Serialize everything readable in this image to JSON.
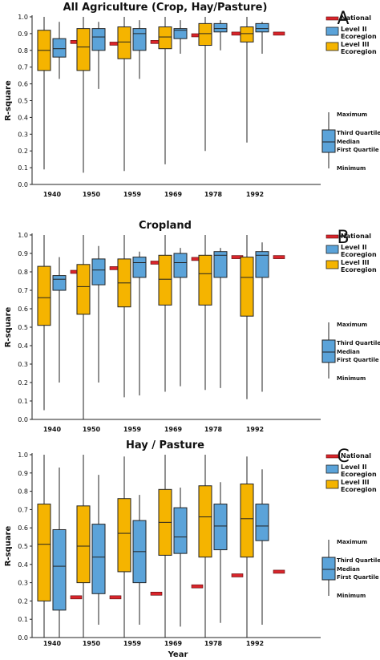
{
  "colors": {
    "national": "#d9252b",
    "level2": "#5ba3d9",
    "level3": "#f5b400",
    "stroke": "#222222"
  },
  "x_label": "Year",
  "legend": {
    "national": "National",
    "level2": [
      "Level II",
      "Ecoregion"
    ],
    "level3": [
      "Level III",
      "Ecoregion"
    ]
  },
  "key": {
    "maximum": "Maximum",
    "third_quartile": "Third Quartile",
    "median": "Median",
    "first_quartile": "First Quartile",
    "minimum": "Minimum"
  },
  "chart_data": [
    {
      "type": "box",
      "panel": "A",
      "title": "All Agriculture (Crop, Hay/Pasture)",
      "ylabel": "R-square",
      "ylim": [
        0,
        1
      ],
      "yticks": [
        "0.0",
        "0.1",
        "0.2",
        "0.3",
        "0.4",
        "0.5",
        "0.6",
        "0.7",
        "0.8",
        "0.9",
        "1.0"
      ],
      "categories": [
        "1940",
        "1950",
        "1959",
        "1969",
        "1978",
        "1992"
      ],
      "level3": [
        {
          "min": 0.09,
          "q1": 0.68,
          "median": 0.8,
          "q3": 0.92,
          "max": 1.0
        },
        {
          "min": 0.07,
          "q1": 0.68,
          "median": 0.82,
          "q3": 0.93,
          "max": 1.0
        },
        {
          "min": 0.08,
          "q1": 0.75,
          "median": 0.85,
          "q3": 0.94,
          "max": 1.0
        },
        {
          "min": 0.12,
          "q1": 0.81,
          "median": 0.88,
          "q3": 0.94,
          "max": 1.0
        },
        {
          "min": 0.2,
          "q1": 0.83,
          "median": 0.9,
          "q3": 0.96,
          "max": 1.0
        },
        {
          "min": 0.25,
          "q1": 0.85,
          "median": 0.9,
          "q3": 0.94,
          "max": 1.0
        }
      ],
      "level2": [
        {
          "min": 0.63,
          "q1": 0.76,
          "median": 0.81,
          "q3": 0.87,
          "max": 0.97
        },
        {
          "min": 0.57,
          "q1": 0.8,
          "median": 0.88,
          "q3": 0.93,
          "max": 0.97
        },
        {
          "min": 0.63,
          "q1": 0.8,
          "median": 0.9,
          "q3": 0.93,
          "max": 0.98
        },
        {
          "min": 0.78,
          "q1": 0.87,
          "median": 0.92,
          "q3": 0.93,
          "max": 0.98
        },
        {
          "min": 0.8,
          "q1": 0.91,
          "median": 0.93,
          "q3": 0.96,
          "max": 0.98
        },
        {
          "min": 0.78,
          "q1": 0.91,
          "median": 0.93,
          "q3": 0.96,
          "max": 0.97
        }
      ],
      "national": [
        0.85,
        0.84,
        0.85,
        0.89,
        0.9,
        0.9
      ]
    },
    {
      "type": "box",
      "panel": "B",
      "title": "Cropland",
      "ylabel": "R-square",
      "ylim": [
        0,
        1
      ],
      "yticks": [
        "0.0",
        "0.1",
        "0.2",
        "0.3",
        "0.4",
        "0.5",
        "0.6",
        "0.7",
        "0.8",
        "0.9",
        "1.0"
      ],
      "categories": [
        "1940",
        "1950",
        "1959",
        "1969",
        "1978",
        "1992"
      ],
      "level3": [
        {
          "min": 0.05,
          "q1": 0.51,
          "median": 0.66,
          "q3": 0.83,
          "max": 1.0
        },
        {
          "min": 0.0,
          "q1": 0.57,
          "median": 0.72,
          "q3": 0.84,
          "max": 1.0
        },
        {
          "min": 0.12,
          "q1": 0.61,
          "median": 0.74,
          "q3": 0.87,
          "max": 1.0
        },
        {
          "min": 0.15,
          "q1": 0.62,
          "median": 0.76,
          "q3": 0.89,
          "max": 1.0
        },
        {
          "min": 0.16,
          "q1": 0.62,
          "median": 0.79,
          "q3": 0.89,
          "max": 1.0
        },
        {
          "min": 0.11,
          "q1": 0.56,
          "median": 0.77,
          "q3": 0.88,
          "max": 1.0
        }
      ],
      "level2": [
        {
          "min": 0.2,
          "q1": 0.7,
          "median": 0.76,
          "q3": 0.78,
          "max": 0.88
        },
        {
          "min": 0.2,
          "q1": 0.73,
          "median": 0.81,
          "q3": 0.87,
          "max": 0.94
        },
        {
          "min": 0.13,
          "q1": 0.77,
          "median": 0.85,
          "q3": 0.88,
          "max": 0.91
        },
        {
          "min": 0.18,
          "q1": 0.77,
          "median": 0.85,
          "q3": 0.9,
          "max": 0.93
        },
        {
          "min": 0.17,
          "q1": 0.77,
          "median": 0.89,
          "q3": 0.91,
          "max": 0.93
        },
        {
          "min": 0.15,
          "q1": 0.77,
          "median": 0.89,
          "q3": 0.91,
          "max": 0.96
        }
      ],
      "national": [
        0.8,
        0.82,
        0.85,
        0.87,
        0.88,
        0.88
      ]
    },
    {
      "type": "box",
      "panel": "C",
      "title": "Hay / Pasture",
      "ylabel": "R-square",
      "ylim": [
        0,
        1
      ],
      "yticks": [
        "0.0",
        "0.1",
        "0.2",
        "0.3",
        "0.4",
        "0.5",
        "0.6",
        "0.7",
        "0.8",
        "0.9",
        "1.0"
      ],
      "categories": [
        "1940",
        "1950",
        "1959",
        "1969",
        "1978",
        "1992"
      ],
      "level3": [
        {
          "min": 0.0,
          "q1": 0.2,
          "median": 0.51,
          "q3": 0.73,
          "max": 1.0
        },
        {
          "min": 0.0,
          "q1": 0.3,
          "median": 0.5,
          "q3": 0.72,
          "max": 1.0
        },
        {
          "min": 0.0,
          "q1": 0.36,
          "median": 0.57,
          "q3": 0.76,
          "max": 0.99
        },
        {
          "min": 0.0,
          "q1": 0.45,
          "median": 0.63,
          "q3": 0.81,
          "max": 1.0
        },
        {
          "min": 0.0,
          "q1": 0.44,
          "median": 0.66,
          "q3": 0.83,
          "max": 1.0
        },
        {
          "min": 0.0,
          "q1": 0.44,
          "median": 0.65,
          "q3": 0.84,
          "max": 0.99
        }
      ],
      "level2": [
        {
          "min": 0.0,
          "q1": 0.15,
          "median": 0.39,
          "q3": 0.59,
          "max": 0.93
        },
        {
          "min": 0.07,
          "q1": 0.24,
          "median": 0.44,
          "q3": 0.62,
          "max": 0.89
        },
        {
          "min": 0.07,
          "q1": 0.3,
          "median": 0.47,
          "q3": 0.64,
          "max": 0.78
        },
        {
          "min": 0.06,
          "q1": 0.46,
          "median": 0.55,
          "q3": 0.71,
          "max": 0.82
        },
        {
          "min": 0.08,
          "q1": 0.48,
          "median": 0.61,
          "q3": 0.73,
          "max": 0.85
        },
        {
          "min": 0.07,
          "q1": 0.53,
          "median": 0.61,
          "q3": 0.73,
          "max": 0.92
        }
      ],
      "national": [
        0.22,
        0.22,
        0.24,
        0.28,
        0.34,
        0.36
      ]
    }
  ]
}
